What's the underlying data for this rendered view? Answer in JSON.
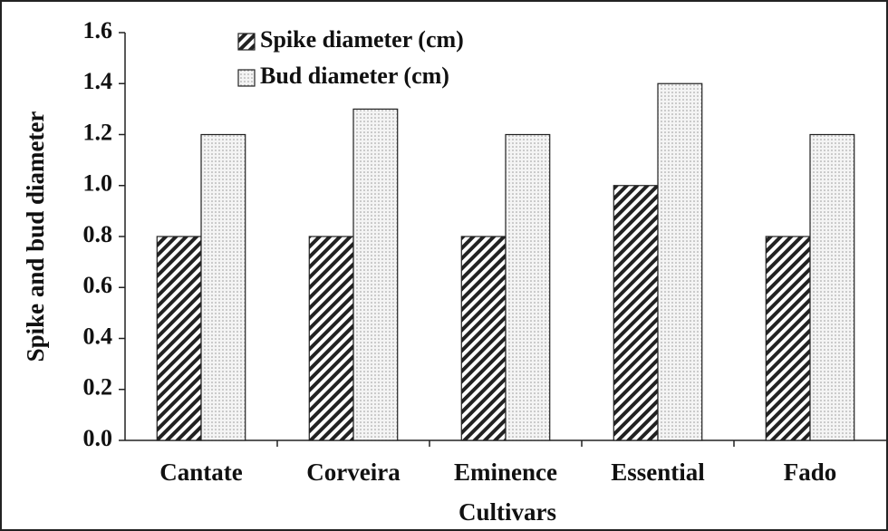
{
  "chart_data": {
    "type": "bar",
    "categories": [
      "Cantate",
      "Corveira",
      "Eminence",
      "Essential",
      "Fado"
    ],
    "series": [
      {
        "name": "Spike diameter (cm)",
        "color": "#222222",
        "values": [
          0.8,
          0.8,
          0.8,
          1.0,
          0.8
        ]
      },
      {
        "name": "Bud diameter (cm)",
        "color": "#999999",
        "values": [
          1.2,
          1.3,
          1.2,
          1.4,
          1.2
        ]
      }
    ],
    "xlabel": "Cultivars",
    "ylabel": "Spike and bud diameter",
    "ylim": [
      0,
      1.6
    ],
    "yticks": [
      {
        "value": 0,
        "label": "0.0"
      },
      0.2,
      0.4,
      0.6,
      0.8,
      {
        "value": 1,
        "label": "1.0"
      },
      1.2,
      1.4,
      1.6
    ],
    "legend": "upper left"
  }
}
